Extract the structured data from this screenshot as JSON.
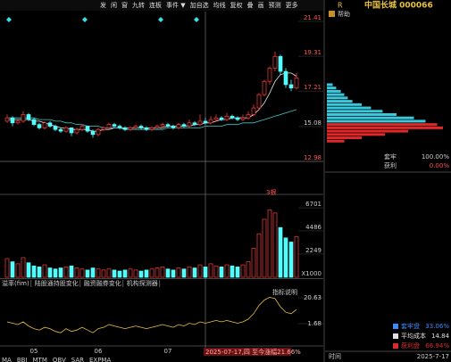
{
  "toolbar": [
    "发",
    "闲",
    "窗",
    "九转",
    "连板",
    "事件 ▼",
    "加自选",
    "均线",
    "复权",
    "叠",
    "画",
    "预测",
    "更多"
  ],
  "stock": {
    "flag": "R",
    "name": "中国长城 000066"
  },
  "help": "帮助",
  "chart_data": [
    {
      "type": "candlestick",
      "ylim": [
        12.98,
        21.41
      ],
      "yticks": [
        12.98,
        15.08,
        17.21,
        19.31,
        21.41
      ],
      "up_color": "#ff3c3c",
      "down_color": "#54fcfc",
      "cursor_index": 37,
      "candles": [
        [
          15.4,
          15.8,
          15.3,
          15.6
        ],
        [
          15.6,
          15.7,
          15.1,
          15.3
        ],
        [
          15.3,
          15.5,
          15.2,
          15.4
        ],
        [
          15.4,
          16.0,
          15.3,
          15.8
        ],
        [
          15.8,
          15.9,
          15.4,
          15.5
        ],
        [
          15.5,
          15.6,
          15.1,
          15.2
        ],
        [
          15.2,
          15.3,
          14.9,
          15.0
        ],
        [
          15.0,
          15.4,
          14.9,
          15.3
        ],
        [
          15.3,
          15.4,
          15.0,
          15.1
        ],
        [
          15.1,
          15.2,
          14.8,
          14.9
        ],
        [
          14.9,
          15.0,
          14.7,
          14.8
        ],
        [
          14.8,
          15.1,
          14.7,
          15.0
        ],
        [
          15.0,
          15.0,
          14.5,
          14.7
        ],
        [
          14.7,
          15.0,
          14.6,
          14.9
        ],
        [
          14.9,
          15.2,
          14.8,
          15.1
        ],
        [
          15.1,
          15.1,
          14.7,
          14.8
        ],
        [
          14.8,
          14.9,
          14.4,
          14.6
        ],
        [
          14.6,
          15.0,
          14.5,
          14.9
        ],
        [
          14.9,
          15.1,
          14.8,
          15.0
        ],
        [
          15.0,
          15.3,
          14.9,
          15.2
        ],
        [
          15.2,
          15.3,
          15.0,
          15.1
        ],
        [
          15.1,
          15.2,
          14.9,
          15.0
        ],
        [
          15.0,
          15.1,
          14.8,
          14.9
        ],
        [
          14.9,
          15.1,
          14.8,
          15.0
        ],
        [
          15.0,
          15.2,
          14.9,
          15.1
        ],
        [
          15.1,
          15.2,
          14.9,
          15.0
        ],
        [
          15.0,
          15.1,
          14.8,
          14.9
        ],
        [
          14.9,
          15.1,
          14.8,
          15.0
        ],
        [
          15.0,
          15.2,
          14.9,
          15.1
        ],
        [
          15.1,
          15.3,
          15.0,
          15.2
        ],
        [
          15.2,
          15.3,
          15.0,
          15.1
        ],
        [
          15.1,
          15.2,
          14.9,
          15.0
        ],
        [
          15.0,
          15.3,
          14.9,
          15.2
        ],
        [
          15.2,
          15.3,
          15.0,
          15.1
        ],
        [
          15.1,
          15.5,
          15.0,
          15.3
        ],
        [
          15.3,
          15.4,
          15.1,
          15.2
        ],
        [
          15.2,
          15.8,
          15.1,
          15.4
        ],
        [
          15.4,
          15.6,
          15.2,
          15.3
        ],
        [
          15.3,
          15.7,
          15.2,
          15.5
        ],
        [
          15.5,
          15.8,
          15.4,
          15.6
        ],
        [
          15.6,
          15.7,
          15.4,
          15.5
        ],
        [
          15.5,
          15.9,
          15.4,
          15.7
        ],
        [
          15.7,
          15.8,
          15.5,
          15.6
        ],
        [
          15.6,
          15.7,
          15.4,
          15.5
        ],
        [
          15.5,
          15.8,
          15.4,
          15.6
        ],
        [
          15.6,
          16.0,
          15.5,
          15.8
        ],
        [
          15.8,
          16.4,
          15.7,
          16.2
        ],
        [
          16.2,
          17.1,
          16.1,
          17.0
        ],
        [
          17.0,
          17.9,
          16.9,
          17.8
        ],
        [
          17.8,
          18.7,
          17.6,
          18.6
        ],
        [
          18.6,
          19.6,
          18.4,
          19.3
        ],
        [
          19.3,
          19.4,
          18.2,
          18.4
        ],
        [
          18.4,
          18.6,
          17.4,
          17.6
        ],
        [
          17.6,
          17.9,
          17.2,
          17.4
        ],
        [
          17.4,
          18.3,
          17.3,
          18.0
        ]
      ],
      "series": [
        {
          "color": "#e8e8e8",
          "values": [
            15.5,
            15.5,
            15.5,
            15.5,
            15.5,
            15.4,
            15.4,
            15.3,
            15.2,
            15.1,
            15.0,
            15.0,
            14.9,
            14.9,
            14.9,
            14.9,
            14.8,
            14.8,
            14.9,
            14.9,
            15.0,
            15.0,
            15.0,
            15.0,
            15.0,
            15.0,
            15.0,
            15.0,
            15.0,
            15.0,
            15.1,
            15.1,
            15.1,
            15.1,
            15.1,
            15.2,
            15.2,
            15.3,
            15.3,
            15.4,
            15.5,
            15.5,
            15.6,
            15.6,
            15.6,
            15.6,
            15.8,
            16.1,
            16.5,
            17.1,
            17.8,
            18.2,
            18.3,
            18.3,
            18.1
          ]
        },
        {
          "color": "#3cc8c8",
          "values": [
            15.6,
            15.6,
            15.6,
            15.6,
            15.6,
            15.6,
            15.5,
            15.5,
            15.5,
            15.4,
            15.4,
            15.3,
            15.3,
            15.2,
            15.2,
            15.1,
            15.1,
            15.1,
            15.0,
            15.0,
            15.0,
            15.0,
            14.9,
            14.9,
            14.9,
            14.9,
            14.9,
            14.9,
            14.9,
            14.9,
            15.0,
            15.0,
            15.0,
            15.0,
            15.0,
            15.0,
            15.0,
            15.1,
            15.1,
            15.1,
            15.1,
            15.2,
            15.2,
            15.2,
            15.3,
            15.3,
            15.3,
            15.4,
            15.5,
            15.6,
            15.7,
            15.8,
            15.9,
            16.0,
            16.1
          ]
        }
      ],
      "xticks": [
        {
          "value": 5,
          "label": "05"
        },
        {
          "value": 17,
          "label": "06"
        },
        {
          "value": 30,
          "label": "07"
        }
      ],
      "cursor_label": "2025-07-17,四 至今涨幅21.66%"
    },
    {
      "type": "bar",
      "ylim": [
        0,
        7000
      ],
      "yticks": [
        2249,
        4486,
        6701
      ],
      "unit": "X1000",
      "annotation": "3根",
      "values": [
        1800,
        1500,
        1300,
        1900,
        1400,
        1100,
        1000,
        1200,
        900,
        800,
        900,
        1000,
        1100,
        900,
        800,
        700,
        900,
        800,
        700,
        800,
        700,
        600,
        700,
        800,
        700,
        600,
        700,
        800,
        900,
        1000,
        800,
        700,
        900,
        800,
        1000,
        900,
        1200,
        1000,
        1300,
        1100,
        1000,
        1200,
        1100,
        1000,
        1200,
        1500,
        2800,
        4200,
        5600,
        6500,
        6200,
        4800,
        3800,
        3400,
        3900
      ]
    },
    {
      "type": "line",
      "ylim": [
        -12.7,
        27.8
      ],
      "yticks": [
        1.68,
        20.63
      ],
      "tabs": [
        "溢率(fim)",
        "陆股通持股变化",
        "融资融券变化",
        "机构探测器"
      ],
      "help": "指标说明",
      "series": [
        {
          "color": "#e8c040",
          "values": [
            3,
            2,
            1,
            3,
            0,
            -2,
            -3,
            -1,
            -2,
            -4,
            -5,
            -2,
            -4,
            -3,
            -1,
            -3,
            -5,
            -2,
            -1,
            1,
            0,
            -1,
            -2,
            -1,
            0,
            -1,
            -2,
            -1,
            0,
            1,
            0,
            -1,
            1,
            0,
            2,
            1,
            3,
            2,
            3,
            4,
            3,
            4,
            3,
            2,
            3,
            5,
            9,
            15,
            19,
            21,
            20,
            14,
            10,
            9,
            12
          ]
        }
      ]
    }
  ],
  "chips": {
    "prices": [
      17.6,
      17.4,
      17.2,
      17.0,
      16.8,
      16.6,
      16.4,
      16.2,
      16.0,
      15.8,
      15.6,
      15.4,
      15.2,
      15.0,
      14.8,
      14.6,
      14.4,
      14.2
    ],
    "values": [
      5,
      8,
      12,
      15,
      18,
      22,
      30,
      38,
      48,
      60,
      75,
      85,
      95,
      100,
      70,
      50,
      30,
      15
    ],
    "above_color": "#3cc8dc",
    "below_color": "#e02828"
  },
  "ratio": [
    {
      "label": "套牢",
      "value": "100.00%"
    },
    {
      "label": "获利",
      "value": "0.00%"
    }
  ],
  "legend": [
    {
      "label": "套牢盘",
      "value": "33.06%",
      "color": "#3c8cff"
    },
    {
      "label": "平均成本",
      "value": "14.84",
      "color": "#e0e0e0"
    },
    {
      "label": "获利盘",
      "value": "66.94%",
      "color": "#e02828"
    }
  ],
  "time": {
    "label": "时间",
    "value": "2025-7-17"
  },
  "indicators": [
    "MA",
    "BBI",
    "MTM",
    "OBV",
    "SAR",
    "EXPMA"
  ]
}
